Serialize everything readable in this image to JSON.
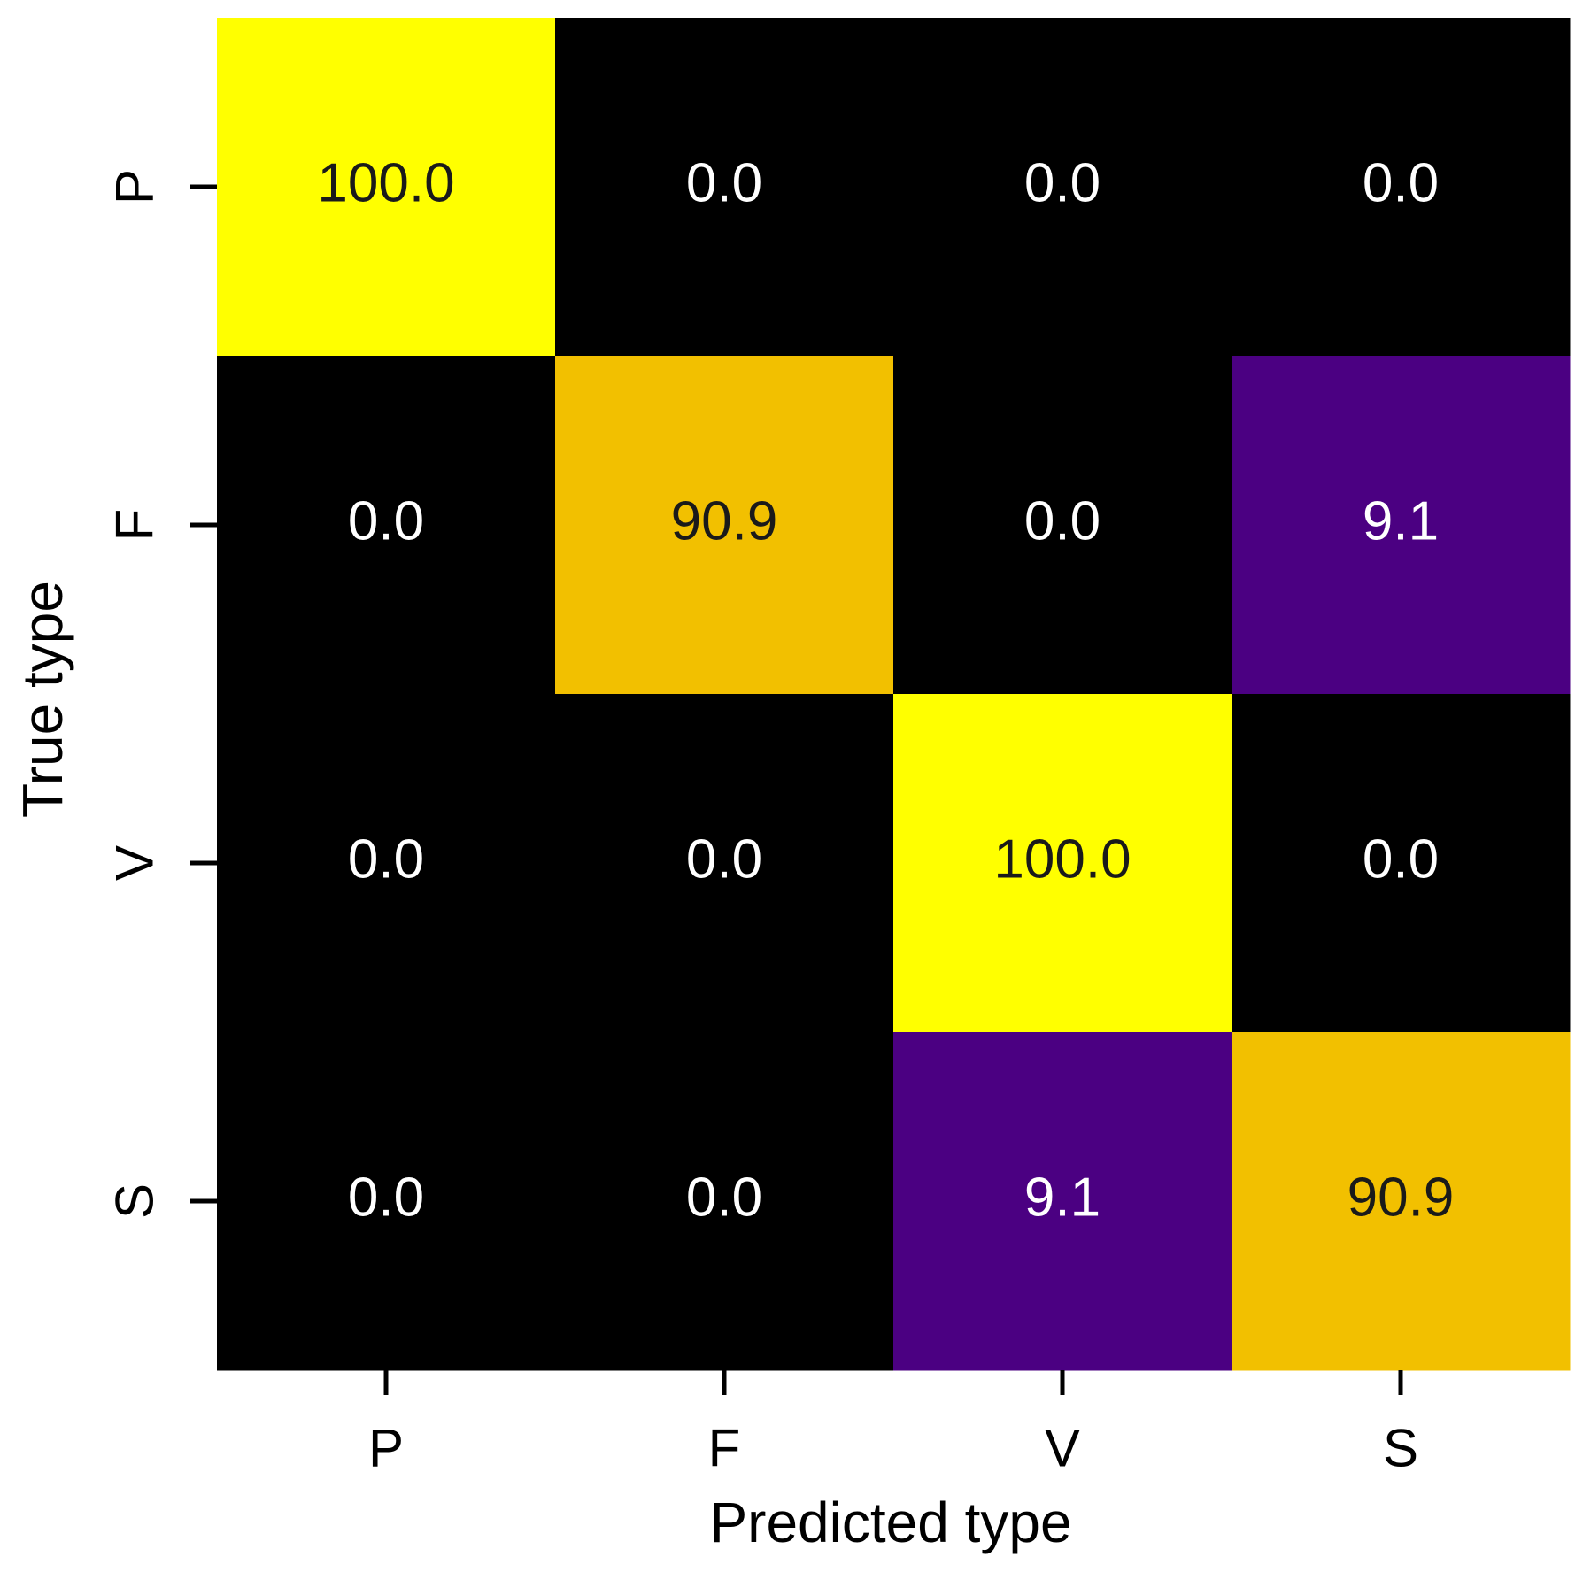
{
  "chart_data": {
    "type": "heatmap",
    "title": "",
    "xlabel": "Predicted type",
    "ylabel": "True type",
    "x_categories": [
      "P",
      "F",
      "V",
      "S"
    ],
    "y_categories": [
      "P",
      "F",
      "V",
      "S"
    ],
    "values": [
      [
        100.0,
        0.0,
        0.0,
        0.0
      ],
      [
        0.0,
        90.9,
        0.0,
        9.1
      ],
      [
        0.0,
        0.0,
        100.0,
        0.0
      ],
      [
        0.0,
        0.0,
        9.1,
        90.9
      ]
    ],
    "value_labels": [
      [
        "100.0",
        "0.0",
        "0.0",
        "0.0"
      ],
      [
        "0.0",
        "90.9",
        "0.0",
        "9.1"
      ],
      [
        "0.0",
        "0.0",
        "100.0",
        "0.0"
      ],
      [
        "0.0",
        "0.0",
        "9.1",
        "90.9"
      ]
    ],
    "value_range": [
      0,
      100
    ],
    "colormap": [
      {
        "min": 0,
        "color": "#000000",
        "text_color": "#ffffff"
      },
      {
        "min": 5,
        "color": "#4b0082",
        "text_color": "#ffffff"
      },
      {
        "min": 50,
        "color": "#f2c000",
        "text_color": "#1a1a1a"
      },
      {
        "min": 99,
        "color": "#ffff00",
        "text_color": "#1a1a1a"
      }
    ],
    "grid": false,
    "legend": "none"
  }
}
